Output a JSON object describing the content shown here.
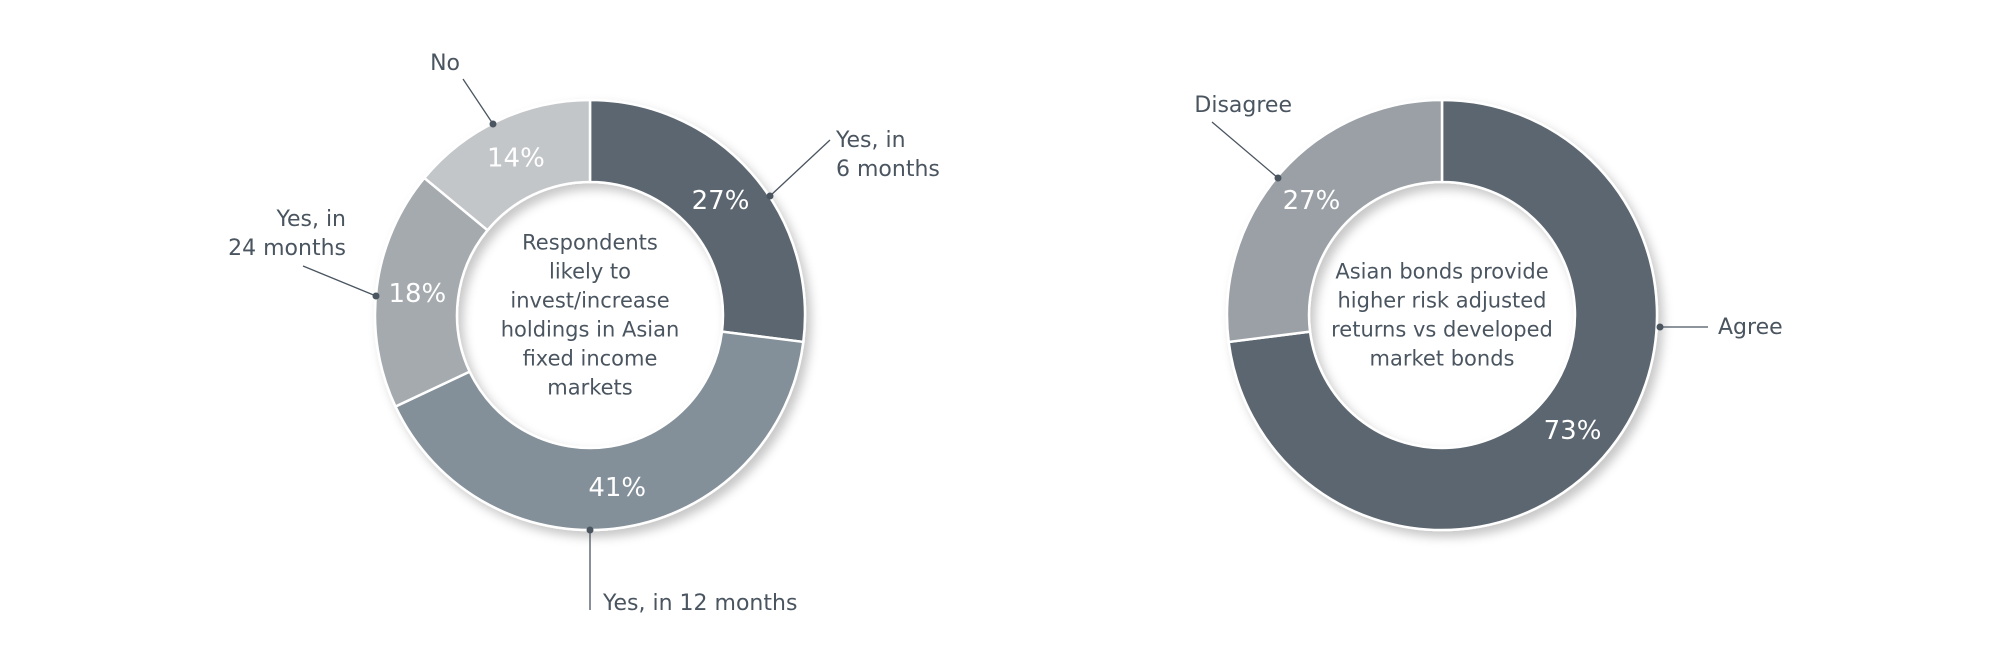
{
  "chart_data": [
    {
      "type": "pie",
      "variant": "donut",
      "title": "",
      "center_label": "Respondents likely to invest/increase holdings in Asian fixed income markets",
      "center_lines": [
        "Respondents",
        "likely to",
        "invest/increase",
        "holdings in Asian",
        "fixed income",
        "markets"
      ],
      "slices": [
        {
          "label": "Yes, in 6 months",
          "label_lines": [
            "Yes, in",
            "6 months"
          ],
          "value": 27,
          "value_label": "27%",
          "color": "#5b6670"
        },
        {
          "label": "Yes, in 12 months",
          "label_lines": [
            "Yes, in 12 months"
          ],
          "value": 41,
          "value_label": "41%",
          "color": "#838f99"
        },
        {
          "label": "Yes, in 24 months",
          "label_lines": [
            "Yes, in",
            "24 months"
          ],
          "value": 18,
          "value_label": "18%",
          "color": "#a5aaae"
        },
        {
          "label": "No",
          "label_lines": [
            "No"
          ],
          "value": 14,
          "value_label": "14%",
          "color": "#c3c6c9"
        }
      ]
    },
    {
      "type": "pie",
      "variant": "donut",
      "title": "",
      "center_label": "Asian bonds provide higher risk adjusted returns vs developed market bonds",
      "center_lines": [
        "Asian bonds provide",
        "higher risk adjusted",
        "returns vs developed",
        "market bonds"
      ],
      "slices": [
        {
          "label": "Agree",
          "label_lines": [
            "Agree"
          ],
          "value": 73,
          "value_label": "73%",
          "color": "#5b6670"
        },
        {
          "label": "Disagree",
          "label_lines": [
            "Disagree"
          ],
          "value": 27,
          "value_label": "27%",
          "color": "#9aa0a5"
        }
      ]
    }
  ]
}
